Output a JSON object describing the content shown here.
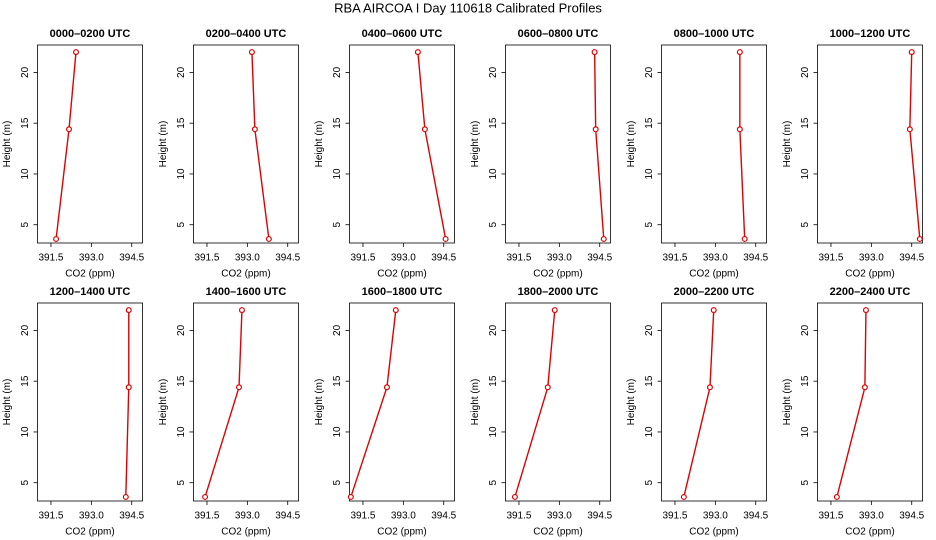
{
  "title": "RBA AIRCOA I  Day 110618  Calibrated Profiles",
  "chart_data": [
    {
      "type": "line",
      "title": "0000–0200 UTC",
      "xlabel": "CO2 (ppm)",
      "ylabel": "Height (m)",
      "xlim": [
        391.0,
        394.9
      ],
      "xticks": [
        391.5,
        {
          "value": 393,
          "label": "393.0"
        },
        394.5
      ],
      "ylim": [
        3.2,
        22.7
      ],
      "yticks": [
        5,
        10,
        15,
        20
      ],
      "series": [
        {
          "color": "#e00000",
          "x": [
            391.69,
            392.17,
            392.43
          ],
          "values": [
            3.6,
            14.4,
            22.0
          ]
        }
      ]
    },
    {
      "type": "line",
      "title": "0200–0400 UTC",
      "xlabel": "CO2 (ppm)",
      "ylabel": "Height (m)",
      "xlim": [
        391.0,
        394.9
      ],
      "xticks": [
        391.5,
        {
          "value": 393,
          "label": "393.0"
        },
        394.5
      ],
      "ylim": [
        3.2,
        22.7
      ],
      "yticks": [
        5,
        10,
        15,
        20
      ],
      "series": [
        {
          "color": "#e00000",
          "x": [
            393.8,
            393.28,
            393.17
          ],
          "values": [
            3.6,
            14.4,
            22.0
          ]
        }
      ]
    },
    {
      "type": "line",
      "title": "0400–0600 UTC",
      "xlabel": "CO2 (ppm)",
      "ylabel": "Height (m)",
      "xlim": [
        391.0,
        394.9
      ],
      "xticks": [
        391.5,
        {
          "value": 393,
          "label": "393.0"
        },
        394.5
      ],
      "ylim": [
        3.2,
        22.7
      ],
      "yticks": [
        5,
        10,
        15,
        20
      ],
      "series": [
        {
          "color": "#e00000",
          "x": [
            394.57,
            393.8,
            393.54
          ],
          "values": [
            3.6,
            14.4,
            22.0
          ]
        }
      ]
    },
    {
      "type": "line",
      "title": "0600–0800 UTC",
      "xlabel": "CO2 (ppm)",
      "ylabel": "Height (m)",
      "xlim": [
        391.0,
        394.9
      ],
      "xticks": [
        391.5,
        {
          "value": 393,
          "label": "393.0"
        },
        394.5
      ],
      "ylim": [
        3.2,
        22.7
      ],
      "yticks": [
        5,
        10,
        15,
        20
      ],
      "series": [
        {
          "color": "#e00000",
          "x": [
            394.65,
            394.35,
            394.31
          ],
          "values": [
            3.6,
            14.4,
            22.0
          ]
        }
      ]
    },
    {
      "type": "line",
      "title": "0800–1000 UTC",
      "xlabel": "CO2 (ppm)",
      "ylabel": "Height (m)",
      "xlim": [
        391.0,
        394.9
      ],
      "xticks": [
        391.5,
        {
          "value": 393,
          "label": "393.0"
        },
        394.5
      ],
      "ylim": [
        3.2,
        22.7
      ],
      "yticks": [
        5,
        10,
        15,
        20
      ],
      "series": [
        {
          "color": "#e00000",
          "x": [
            394.09,
            393.91,
            393.91
          ],
          "values": [
            3.6,
            14.4,
            22.0
          ]
        }
      ]
    },
    {
      "type": "line",
      "title": "1000–1200 UTC",
      "xlabel": "CO2 (ppm)",
      "ylabel": "Height (m)",
      "xlim": [
        391.0,
        394.9
      ],
      "xticks": [
        391.5,
        {
          "value": 393,
          "label": "393.0"
        },
        394.5
      ],
      "ylim": [
        3.2,
        22.7
      ],
      "yticks": [
        5,
        10,
        15,
        20
      ],
      "series": [
        {
          "color": "#e00000",
          "x": [
            394.8,
            394.43,
            394.5
          ],
          "values": [
            3.6,
            14.4,
            22.0
          ]
        }
      ]
    },
    {
      "type": "line",
      "title": "1200–1400 UTC",
      "xlabel": "CO2 (ppm)",
      "ylabel": "Height (m)",
      "xlim": [
        391.0,
        394.9
      ],
      "xticks": [
        391.5,
        {
          "value": 393,
          "label": "393.0"
        },
        394.5
      ],
      "ylim": [
        3.2,
        22.7
      ],
      "yticks": [
        5,
        10,
        15,
        20
      ],
      "series": [
        {
          "color": "#e00000",
          "x": [
            394.28,
            394.39,
            394.39
          ],
          "values": [
            3.6,
            14.4,
            22.0
          ]
        }
      ]
    },
    {
      "type": "line",
      "title": "1400–1600 UTC",
      "xlabel": "CO2 (ppm)",
      "ylabel": "Height (m)",
      "xlim": [
        391.0,
        394.9
      ],
      "xticks": [
        391.5,
        {
          "value": 393,
          "label": "393.0"
        },
        394.5
      ],
      "ylim": [
        3.2,
        22.7
      ],
      "yticks": [
        5,
        10,
        15,
        20
      ],
      "series": [
        {
          "color": "#e00000",
          "x": [
            391.43,
            392.69,
            392.8
          ],
          "values": [
            3.6,
            14.4,
            22.0
          ]
        }
      ]
    },
    {
      "type": "line",
      "title": "1600–1800 UTC",
      "xlabel": "CO2 (ppm)",
      "ylabel": "Height (m)",
      "xlim": [
        391.0,
        394.9
      ],
      "xticks": [
        391.5,
        {
          "value": 393,
          "label": "393.0"
        },
        394.5
      ],
      "ylim": [
        3.2,
        22.7
      ],
      "yticks": [
        5,
        10,
        15,
        20
      ],
      "series": [
        {
          "color": "#e00000",
          "x": [
            391.05,
            392.39,
            392.72
          ],
          "values": [
            3.6,
            14.4,
            22.0
          ]
        }
      ]
    },
    {
      "type": "line",
      "title": "1800–2000 UTC",
      "xlabel": "CO2 (ppm)",
      "ylabel": "Height (m)",
      "xlim": [
        391.0,
        394.9
      ],
      "xticks": [
        391.5,
        {
          "value": 393,
          "label": "393.0"
        },
        394.5
      ],
      "ylim": [
        3.2,
        22.7
      ],
      "yticks": [
        5,
        10,
        15,
        20
      ],
      "series": [
        {
          "color": "#e00000",
          "x": [
            391.35,
            392.57,
            392.83
          ],
          "values": [
            3.6,
            14.4,
            22.0
          ]
        }
      ]
    },
    {
      "type": "line",
      "title": "2000–2200 UTC",
      "xlabel": "CO2 (ppm)",
      "ylabel": "Height (m)",
      "xlim": [
        391.0,
        394.9
      ],
      "xticks": [
        391.5,
        {
          "value": 393,
          "label": "393.0"
        },
        394.5
      ],
      "ylim": [
        3.2,
        22.7
      ],
      "yticks": [
        5,
        10,
        15,
        20
      ],
      "series": [
        {
          "color": "#e00000",
          "x": [
            391.83,
            392.8,
            392.94
          ],
          "values": [
            3.6,
            14.4,
            22.0
          ]
        }
      ]
    },
    {
      "type": "line",
      "title": "2200–2400 UTC",
      "xlabel": "CO2 (ppm)",
      "ylabel": "Height (m)",
      "xlim": [
        391.0,
        394.9
      ],
      "xticks": [
        391.5,
        {
          "value": 393,
          "label": "393.0"
        },
        394.5
      ],
      "ylim": [
        3.2,
        22.7
      ],
      "yticks": [
        5,
        10,
        15,
        20
      ],
      "series": [
        {
          "color": "#e00000",
          "x": [
            391.72,
            392.76,
            392.8
          ],
          "values": [
            3.6,
            14.4,
            22.0
          ]
        }
      ]
    }
  ]
}
